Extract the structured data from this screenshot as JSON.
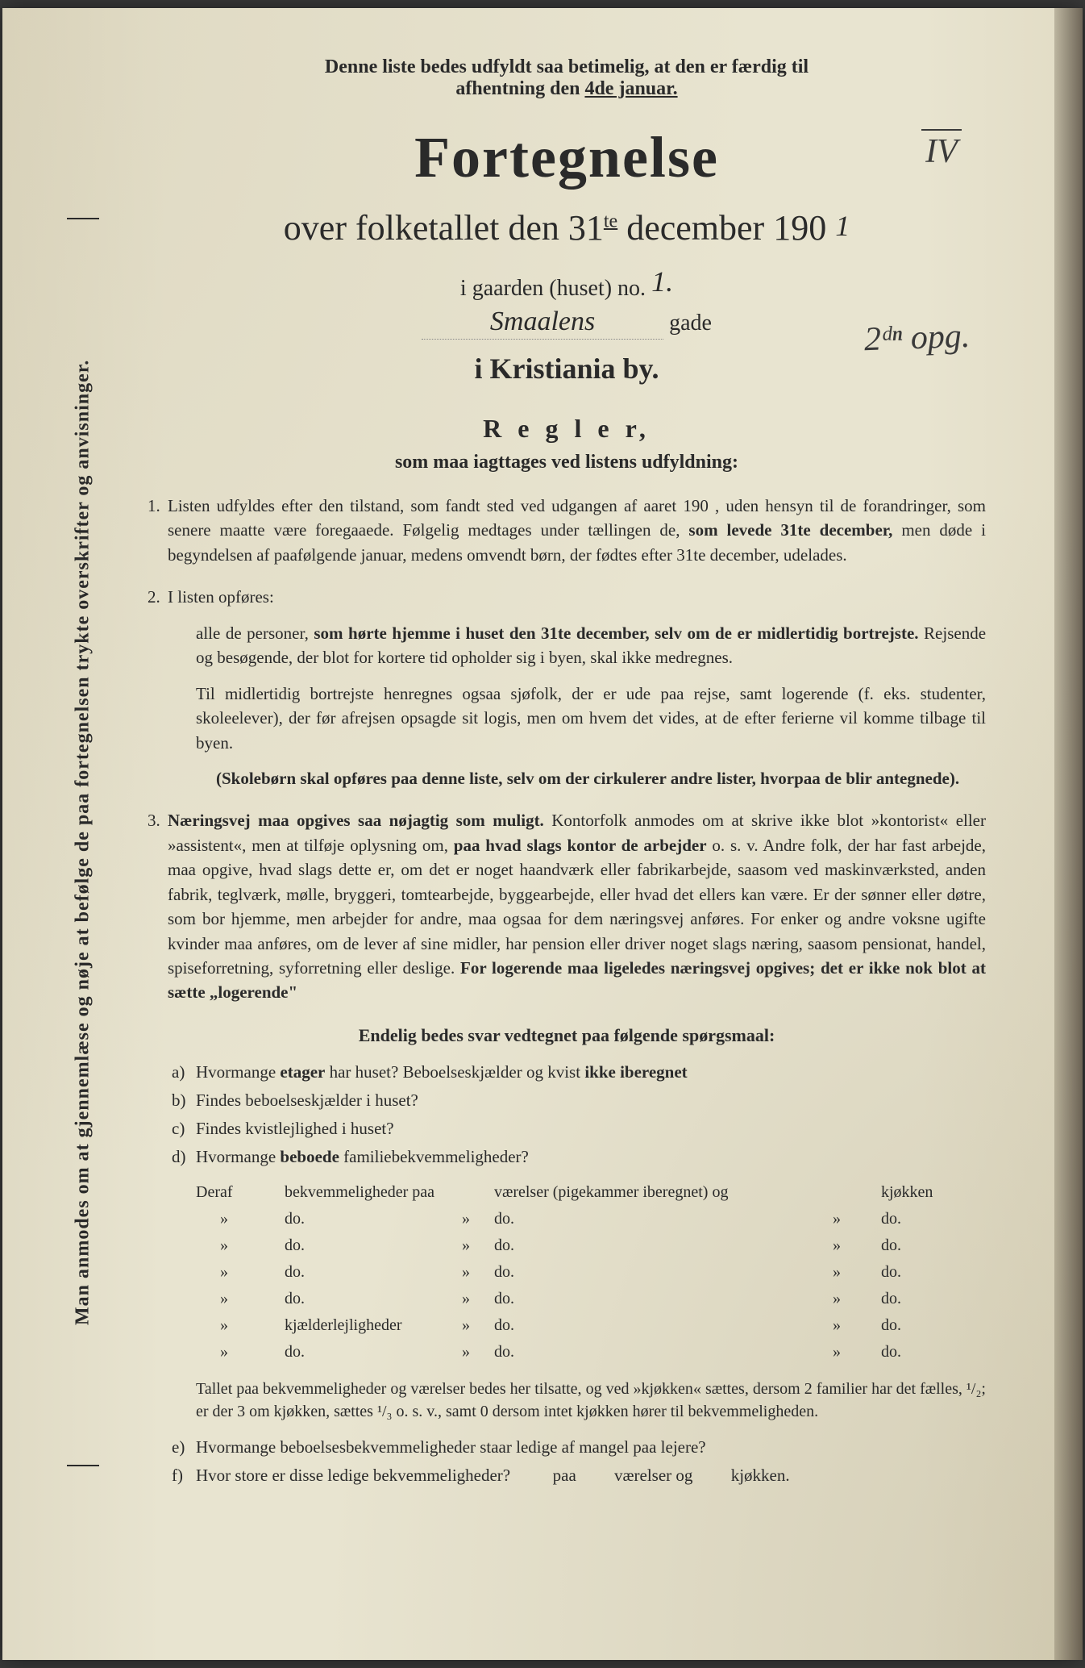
{
  "colors": {
    "paper": "#e8e4d0",
    "text": "#2a2a2a",
    "background": "#3a3a3a"
  },
  "instruction": {
    "line1": "Denne liste bedes udfyldt saa betimelig, at den er færdig til",
    "line2_prefix": "afhentning den ",
    "line2_underlined": "4de januar."
  },
  "page_mark": "IV",
  "title": "Fortegnelse",
  "subtitle": {
    "prefix": "over folketallet den 31",
    "sup": "te",
    "suffix": " december 190",
    "handwritten_year": "1"
  },
  "house": {
    "label": "i gaarden (huset) no.",
    "number": "1.",
    "street_name": "Smaalens",
    "street_suffix": "gade",
    "handwritten_note": "2ᵈⁿ opg."
  },
  "city": "i Kristiania by.",
  "rules_header": "R e g l e r,",
  "rules_subheader": "som maa iagttages ved listens udfyldning:",
  "rules": {
    "r1": {
      "num": "1.",
      "text_parts": [
        "Listen udfyldes efter den tilstand, som fandt sted ved udgangen af aaret 190   , uden hensyn til de forandringer, som senere maatte være foregaaede. Følgelig medtages under tællingen de, ",
        "som levede 31te december,",
        " men døde i begyndelsen af paafølgende januar, medens omvendt børn, der fødtes efter 31te december, udelades."
      ]
    },
    "r2": {
      "num": "2.",
      "intro": "I listen opføres:",
      "para1_parts": [
        "alle de personer, ",
        "som hørte hjemme i huset den 31te december, selv om de er midlertidig bortrejste.",
        " Rejsende og besøgende, der blot for kortere tid opholder sig i byen, skal ikke medregnes."
      ],
      "para2": "Til midlertidig bortrejste henregnes ogsaa sjøfolk, der er ude paa rejse, samt logerende (f. eks. studenter, skoleelever), der før afrejsen opsagde sit logis, men om hvem det vides, at de efter ferierne vil komme tilbage til byen.",
      "para3": "(Skolebørn skal opføres paa denne liste, selv om der cirkulerer andre lister, hvorpaa de blir antegnede)."
    },
    "r3": {
      "num": "3.",
      "text_parts": [
        "Næringsvej maa opgives saa nøjagtig som muligt.",
        " Kontorfolk anmodes om at skrive ikke blot »kontorist« eller »assistent«, men at tilføje oplysning om, ",
        "paa hvad slags kontor de arbejder",
        " o. s. v. Andre folk, der har fast arbejde, maa opgive, hvad slags dette er, om det er noget haandværk eller fabrikarbejde, saasom ved maskinværksted, anden fabrik, teglværk, mølle, bryggeri, tomtearbejde, byggearbejde, eller hvad det ellers kan være. Er der sønner eller døtre, som bor hjemme, men arbejder for andre, maa ogsaa for dem næringsvej anføres. For enker og andre voksne ugifte kvinder maa anføres, om de lever af sine midler, har pension eller driver noget slags næring, saasom pensionat, handel, spiseforretning, syforretning eller deslige. ",
        "For logerende maa ligeledes næringsvej opgives; det er ikke nok blot at sætte „logerende\""
      ]
    }
  },
  "questions_header": "Endelig bedes svar vedtegnet paa følgende spørgsmaal:",
  "questions": {
    "a": {
      "letter": "a)",
      "parts": [
        "Hvormange ",
        "etager",
        " har huset? Beboelseskjælder og kvist ",
        "ikke iberegnet"
      ]
    },
    "b": {
      "letter": "b)",
      "text": "Findes beboelseskjælder i huset?"
    },
    "c": {
      "letter": "c)",
      "text": "Findes kvistlejlighed i huset?"
    },
    "d": {
      "letter": "d)",
      "parts": [
        "Hvormange ",
        "beboede",
        " familiebekvemmeligheder?"
      ]
    }
  },
  "table": {
    "header": {
      "col1": "Deraf",
      "col2": "bekvemmeligheder paa",
      "col3": "værelser (pigekammer iberegnet) og",
      "col5": "kjøkken"
    },
    "rows": [
      {
        "col2": "do.",
        "col3": "do.",
        "col5": "do."
      },
      {
        "col2": "do.",
        "col3": "do.",
        "col5": "do."
      },
      {
        "col2": "do.",
        "col3": "do.",
        "col5": "do."
      },
      {
        "col2": "do.",
        "col3": "do.",
        "col5": "do."
      },
      {
        "col2": "kjælderlejligheder",
        "col3": "do.",
        "col5": "do."
      },
      {
        "col2": "do.",
        "col3": "do.",
        "col5": "do."
      }
    ]
  },
  "footer_para": "Tallet paa bekvemmeligheder og værelser bedes her tilsatte, og ved »kjøkken« sættes, dersom 2 familier har det fælles, ¹/₂; er der 3 om kjøkken, sættes ¹/₃ o. s. v., samt 0 dersom intet kjøkken hører til bekvemmeligheden.",
  "question_e": {
    "letter": "e)",
    "text": "Hvormange beboelsesbekvemmeligheder staar ledige af mangel paa lejere?"
  },
  "question_f": {
    "letter": "f)",
    "text": "Hvor store er disse ledige bekvemmeligheder?",
    "suffix1": "paa",
    "suffix2": "værelser og",
    "suffix3": "kjøkken."
  },
  "vertical_text": "Man anmodes om at gjennemlæse og nøje at befølge de paa fortegnelsen trykte overskrifter og anvisninger."
}
